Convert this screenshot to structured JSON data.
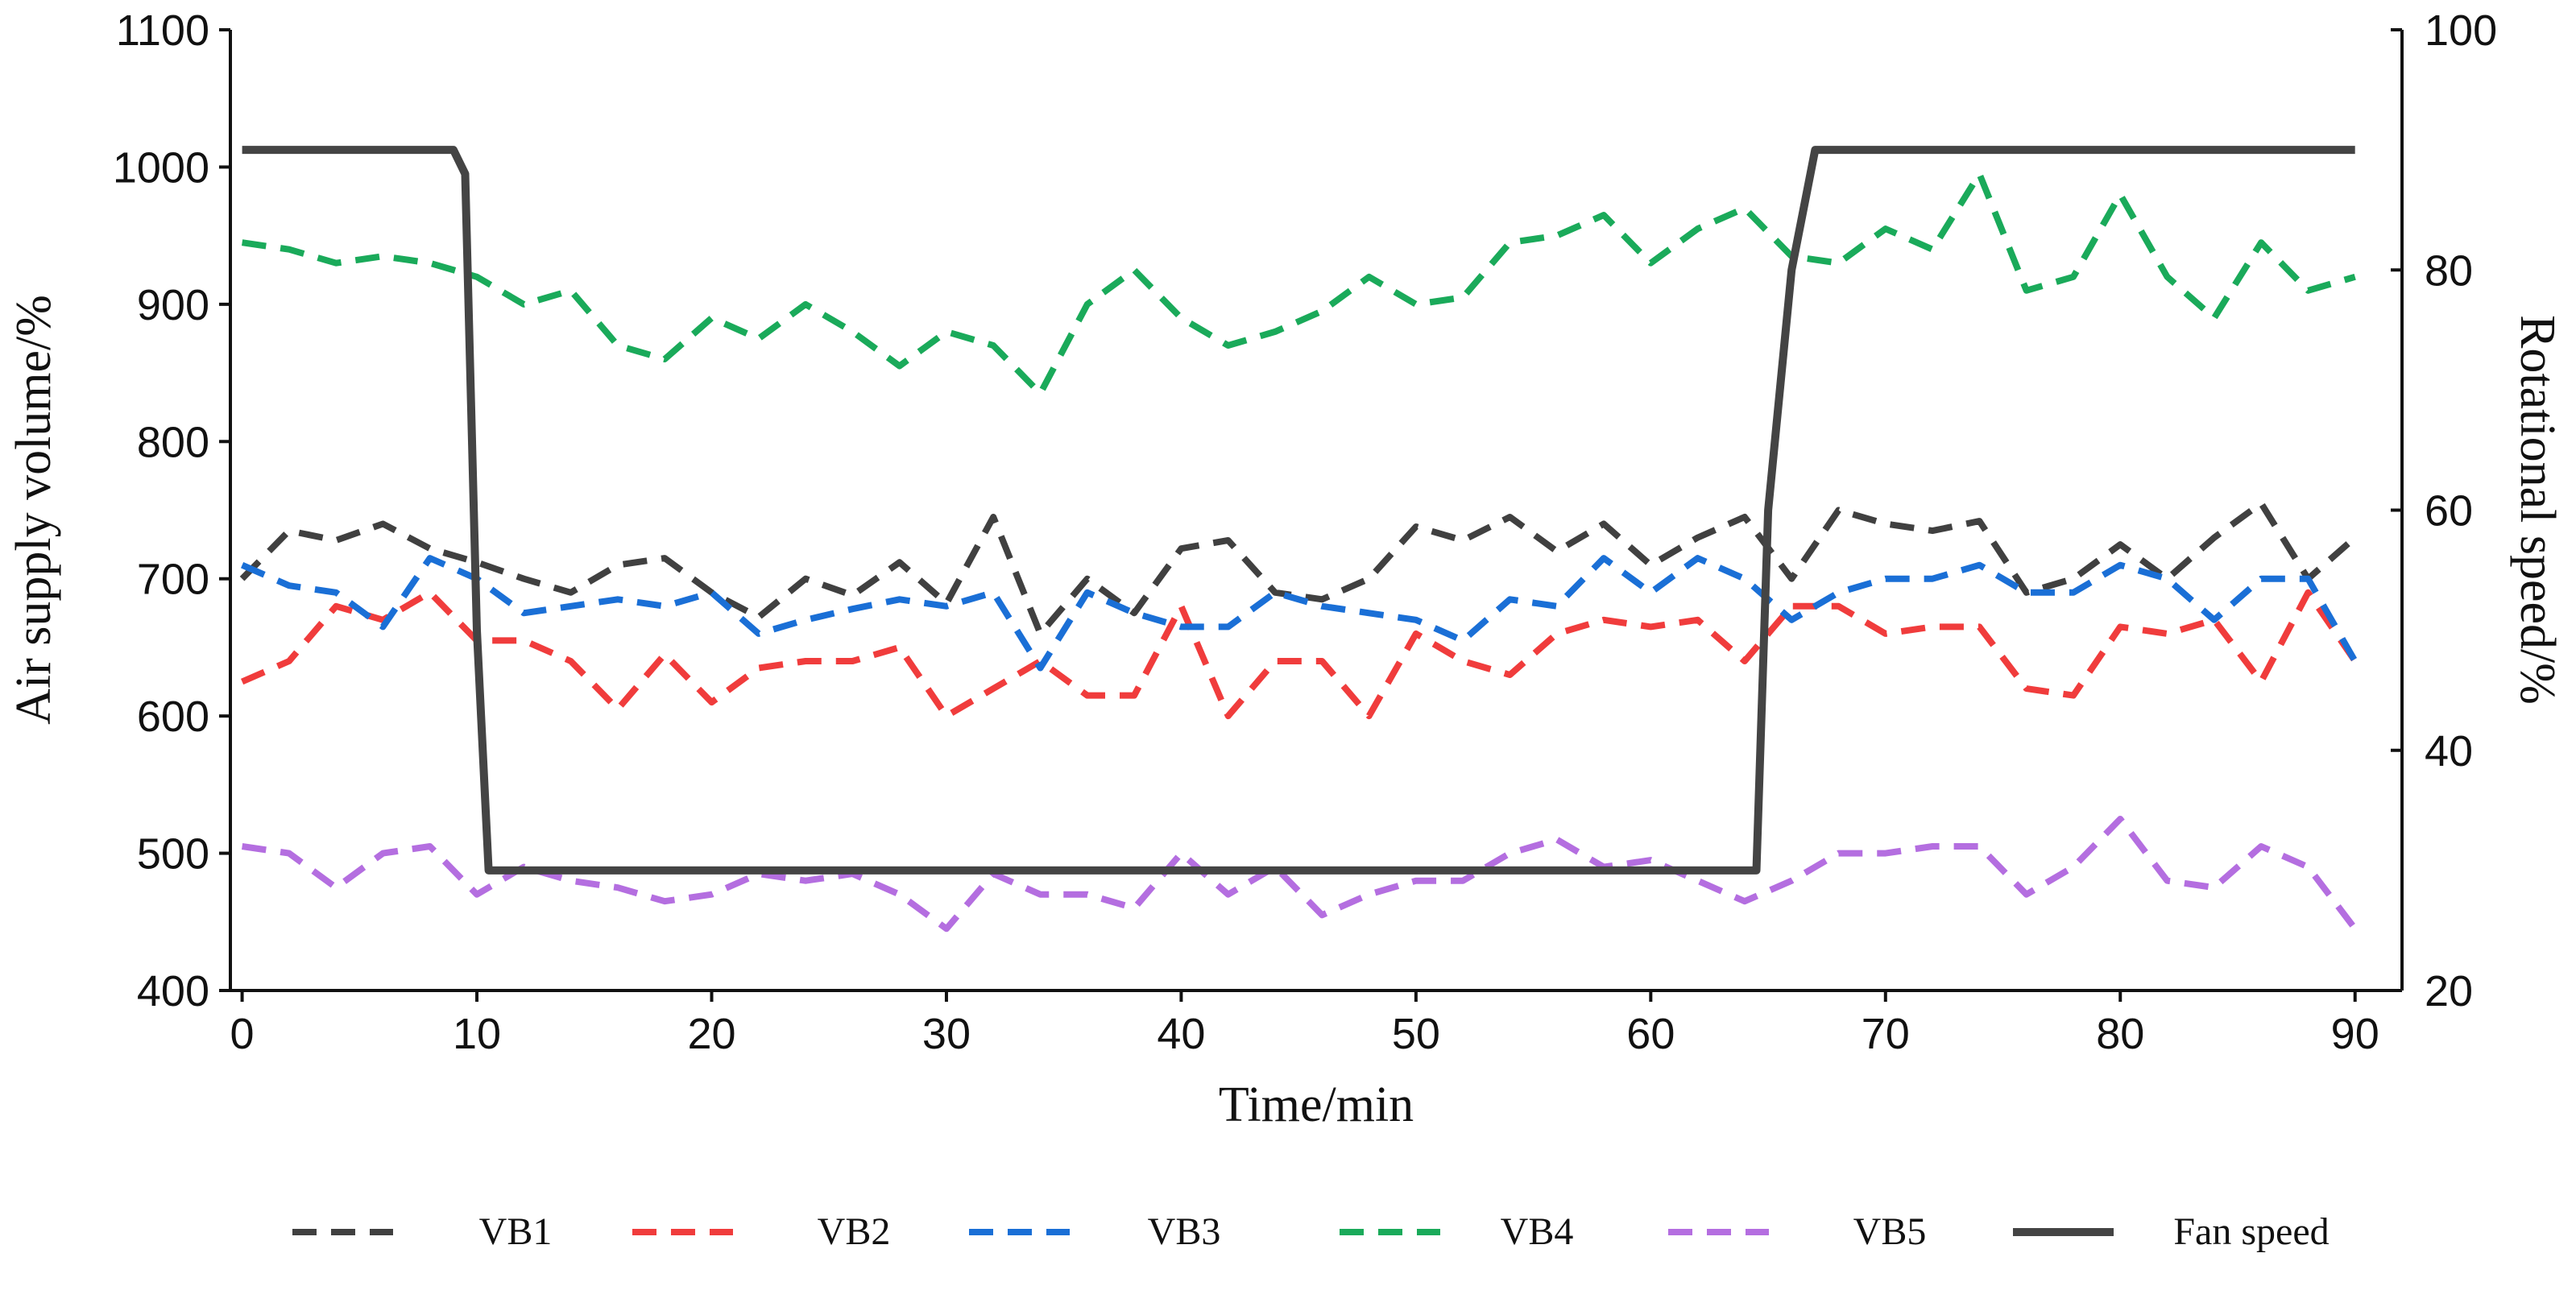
{
  "chart_data": {
    "type": "line",
    "xlabel": "Time/min",
    "ylabel": "Air supply volume/%",
    "y2label": "Rotational speed/%",
    "x": [
      0,
      2,
      4,
      6,
      8,
      10,
      12,
      14,
      16,
      18,
      20,
      22,
      24,
      26,
      28,
      30,
      32,
      34,
      36,
      38,
      40,
      42,
      44,
      46,
      48,
      50,
      52,
      54,
      56,
      58,
      60,
      62,
      64,
      66,
      68,
      70,
      72,
      74,
      76,
      78,
      80,
      82,
      84,
      86,
      88,
      90
    ],
    "series": [
      {
        "name": "VB1",
        "color": "#404040",
        "dash": true,
        "values": [
          700,
          735,
          728,
          740,
          722,
          712,
          700,
          690,
          710,
          715,
          690,
          672,
          700,
          688,
          712,
          682,
          745,
          660,
          700,
          675,
          722,
          728,
          690,
          685,
          700,
          738,
          728,
          745,
          720,
          740,
          710,
          730,
          745,
          700,
          750,
          740,
          735,
          742,
          690,
          700,
          725,
          700,
          730,
          755,
          700,
          730
        ]
      },
      {
        "name": "VB2",
        "color": "#f03c3c",
        "dash": true,
        "values": [
          625,
          640,
          680,
          670,
          690,
          655,
          655,
          640,
          605,
          645,
          610,
          635,
          640,
          640,
          650,
          600,
          620,
          640,
          615,
          615,
          680,
          600,
          640,
          640,
          600,
          660,
          640,
          630,
          660,
          670,
          665,
          670,
          640,
          680,
          680,
          660,
          665,
          665,
          620,
          615,
          665,
          660,
          670,
          625,
          690,
          640
        ]
      },
      {
        "name": "VB3",
        "color": "#1a6fd6",
        "dash": true,
        "values": [
          710,
          695,
          690,
          665,
          715,
          700,
          675,
          680,
          685,
          680,
          690,
          660,
          670,
          678,
          685,
          680,
          690,
          635,
          690,
          675,
          665,
          665,
          690,
          680,
          675,
          670,
          655,
          685,
          680,
          715,
          690,
          715,
          700,
          670,
          690,
          700,
          700,
          710,
          690,
          690,
          710,
          700,
          670,
          700,
          700,
          640
        ]
      },
      {
        "name": "VB4",
        "color": "#1aaa5a",
        "dash": true,
        "values": [
          945,
          940,
          930,
          935,
          930,
          920,
          900,
          910,
          870,
          860,
          890,
          875,
          900,
          880,
          855,
          880,
          870,
          835,
          900,
          925,
          890,
          870,
          880,
          895,
          920,
          900,
          905,
          945,
          950,
          965,
          930,
          955,
          970,
          935,
          930,
          955,
          940,
          995,
          910,
          920,
          980,
          920,
          890,
          945,
          910,
          920
        ]
      },
      {
        "name": "VB5",
        "color": "#b46ee0",
        "dash": true,
        "values": [
          505,
          500,
          475,
          500,
          505,
          470,
          490,
          480,
          475,
          465,
          470,
          485,
          480,
          485,
          470,
          445,
          485,
          470,
          470,
          460,
          500,
          470,
          490,
          455,
          470,
          480,
          480,
          500,
          510,
          490,
          495,
          480,
          465,
          480,
          500,
          500,
          505,
          505,
          470,
          490,
          525,
          480,
          475,
          505,
          490,
          445
        ]
      },
      {
        "name": "Fan speed",
        "color": "#444444",
        "dash": false,
        "axis": "y2",
        "x": [
          0,
          9,
          9.5,
          10,
          10.5,
          20,
          30,
          40,
          50,
          60,
          64.5,
          65,
          66,
          67,
          68,
          70,
          80,
          90
        ],
        "values": [
          90,
          90,
          88,
          50,
          30,
          30,
          30,
          30,
          30,
          30,
          30,
          60,
          80,
          90,
          90,
          90,
          90,
          90
        ]
      }
    ],
    "xlim": [
      -0.5,
      92
    ],
    "xticks": [
      0,
      10,
      20,
      30,
      40,
      50,
      60,
      70,
      80,
      90
    ],
    "ylim": [
      400,
      1100
    ],
    "yticks": [
      400,
      500,
      600,
      700,
      800,
      900,
      1000,
      1100
    ],
    "y2lim": [
      20,
      100
    ],
    "y2ticks": [
      20,
      40,
      60,
      80,
      100
    ]
  }
}
